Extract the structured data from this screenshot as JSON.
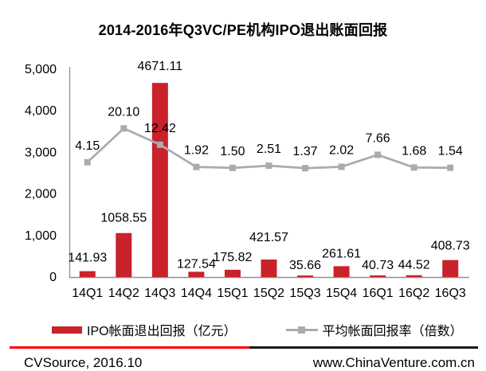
{
  "title": "2014-2016年Q3VC/PE机构IPO退出账面回报",
  "chart_data": {
    "type": "combo-bar-line",
    "categories": [
      "14Q1",
      "14Q2",
      "14Q3",
      "14Q4",
      "15Q1",
      "15Q2",
      "15Q3",
      "15Q4",
      "16Q1",
      "16Q2",
      "16Q3"
    ],
    "series": [
      {
        "name": "IPO帐面退出回报（亿元）",
        "type": "bar",
        "color": "#C9222B",
        "values": [
          141.93,
          1058.55,
          4671.11,
          127.54,
          175.82,
          421.57,
          35.66,
          261.61,
          40.73,
          44.52,
          408.73
        ]
      },
      {
        "name": "平均帐面回报率（倍数）",
        "type": "line",
        "color": "#A9ACAE",
        "values": [
          4.15,
          20.1,
          12.42,
          1.92,
          1.5,
          2.51,
          1.37,
          2.02,
          7.66,
          1.68,
          1.54
        ]
      }
    ],
    "left_axis": {
      "min": 0,
      "max": 5000,
      "tick_step": 1000,
      "tick_labels": [
        "0",
        "1,000",
        "2,000",
        "3,000",
        "4,000",
        "5,000"
      ]
    },
    "grid": false,
    "legend_position": "bottom",
    "layout": {
      "axis_color": "#909090",
      "hidden_line_axis": {
        "min": -50,
        "max": 48
      },
      "bar_label_dy": [
        -4,
        -6,
        -8,
        3,
        -3,
        -15,
        0,
        -3,
        0,
        0,
        -5
      ]
    }
  },
  "footer": {
    "left": "CVSource, 2016.10",
    "right": "www.ChinaVenture.com.cn",
    "accent_color": "#FF0000",
    "rule_color": "#1A1A1A"
  }
}
